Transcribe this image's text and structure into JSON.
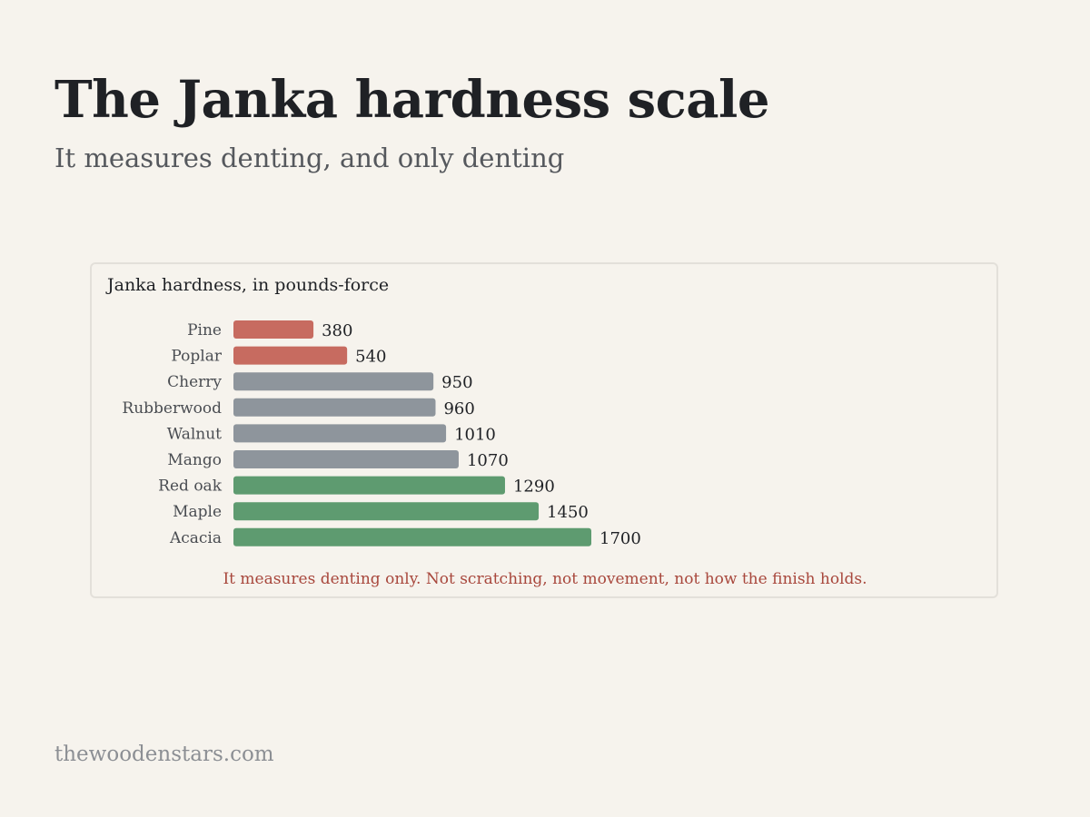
{
  "header": {
    "title": "The Janka hardness scale",
    "subtitle": "It measures denting, and only denting"
  },
  "chart_data": {
    "type": "bar",
    "orientation": "horizontal",
    "title": "Janka hardness, in pounds-force",
    "categories": [
      "Pine",
      "Poplar",
      "Cherry",
      "Rubberwood",
      "Walnut",
      "Mango",
      "Red oak",
      "Maple",
      "Acacia"
    ],
    "values": [
      380,
      540,
      950,
      960,
      1010,
      1070,
      1290,
      1450,
      1700
    ],
    "bar_colors": [
      "#c76b60",
      "#c76b60",
      "#8e959c",
      "#8e959c",
      "#8e959c",
      "#8e959c",
      "#5e9b70",
      "#5e9b70",
      "#5e9b70"
    ],
    "data_labels": true,
    "grid": false,
    "legend": "none",
    "annotation": "It measures denting only. Not scratching, not movement, not how the finish holds."
  },
  "footer": {
    "site": "thewoodenstars.com"
  }
}
